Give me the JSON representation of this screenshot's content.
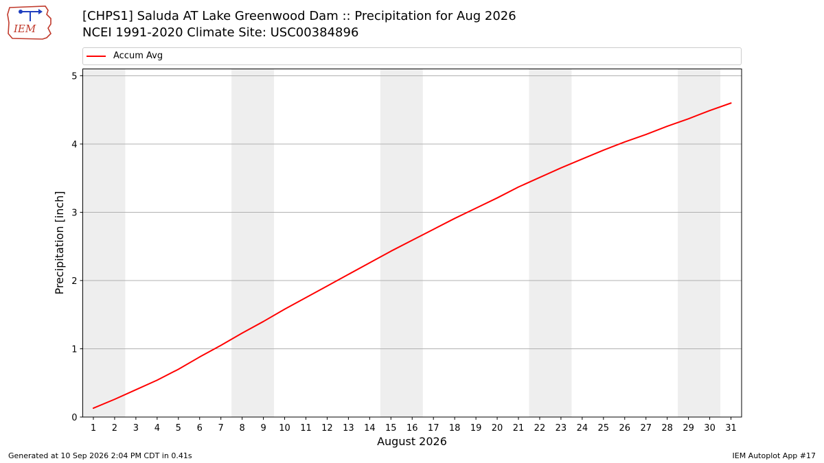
{
  "logo": {
    "text": "IEM"
  },
  "header": {
    "title": "[CHPS1] Saluda  AT Lake Greenwood Dam :: Precipitation for Aug 2026",
    "subtitle": "NCEI 1991-2020 Climate Site: USC00384896"
  },
  "footer": {
    "left": "Generated at 10 Sep 2026 2:04 PM CDT in 0.41s",
    "right": "IEM Autoplot App #17"
  },
  "colors": {
    "series": "#ff0000",
    "weekend_shade": "#eeeeee",
    "grid": "#b0b0b0"
  },
  "chart_data": {
    "type": "line",
    "xlabel": "August 2026",
    "ylabel": "Precipitation [inch]",
    "xlim": [
      0.5,
      31.5
    ],
    "ylim": [
      0,
      5.1
    ],
    "xticks": [
      1,
      2,
      3,
      4,
      5,
      6,
      7,
      8,
      9,
      10,
      11,
      12,
      13,
      14,
      15,
      16,
      17,
      18,
      19,
      20,
      21,
      22,
      23,
      24,
      25,
      26,
      27,
      28,
      29,
      30,
      31
    ],
    "yticks": [
      0,
      1,
      2,
      3,
      4,
      5
    ],
    "grid": "horizontal",
    "legend": "top",
    "shaded_days": [
      [
        1,
        2
      ],
      [
        8,
        9
      ],
      [
        15,
        16
      ],
      [
        22,
        23
      ],
      [
        29,
        30
      ]
    ],
    "series": [
      {
        "name": "Accum Avg",
        "color": "#ff0000",
        "x": [
          1,
          2,
          3,
          4,
          5,
          6,
          7,
          8,
          9,
          10,
          11,
          12,
          13,
          14,
          15,
          16,
          17,
          18,
          19,
          20,
          21,
          22,
          23,
          24,
          25,
          26,
          27,
          28,
          29,
          30,
          31
        ],
        "values": [
          0.13,
          0.26,
          0.4,
          0.54,
          0.7,
          0.88,
          1.05,
          1.23,
          1.4,
          1.58,
          1.75,
          1.92,
          2.09,
          2.26,
          2.43,
          2.59,
          2.75,
          2.91,
          3.06,
          3.21,
          3.37,
          3.51,
          3.65,
          3.78,
          3.91,
          4.03,
          4.14,
          4.26,
          4.37,
          4.49,
          4.6
        ]
      }
    ]
  }
}
